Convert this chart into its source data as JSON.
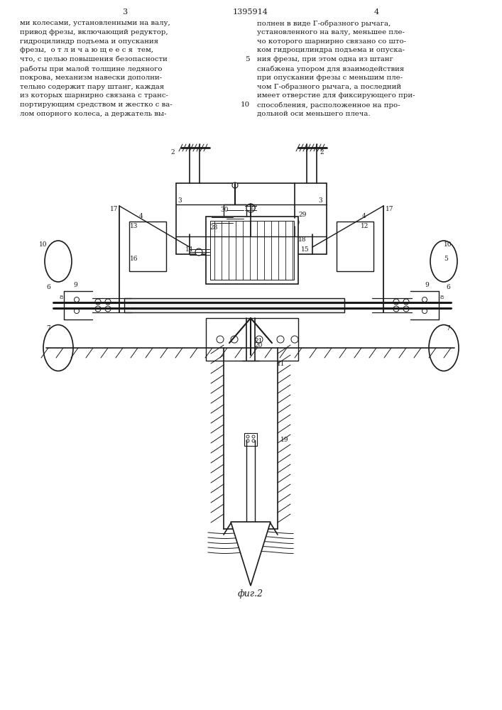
{
  "page_title": "1395914",
  "page_left": "3",
  "page_right": "4",
  "text_left_lines": [
    "ми колесами, установленными на валу,",
    "привод фрезы, включающий редуктор,",
    "гидроцилиндр подъема и опускания",
    "фрезы,  о т л и ч а ю щ е е с я  тем,",
    "что, с целью повышения безопасности",
    "работы при малой толщине ледяного",
    "покрова, механизм навески дополни-",
    "тельно содержит пару штанг, каждая",
    "из которых шарнирно связана с транс-",
    "портирующим средством и жестко с ва-",
    "лом опорного колеса, а держатель вы-"
  ],
  "text_right_lines": [
    "полнен в виде Г-образного рычага,",
    "установленного на валу, меньшее пле-",
    "чо которого шарнирно связано со што-",
    "ком гидроцилиндра подъема и опуска-",
    "ния фрезы, при этом одна из штанг",
    "снабжена упором для взаимодействия",
    "при опускании фрезы с меньшим пле-",
    "чом Г-образного рычага, а последний",
    "имеет отверстие для фиксирующего при-",
    "способления, расположенное на про-",
    "дольной оси меньшего плеча."
  ],
  "line_num_5_row": 4,
  "line_num_10_row": 9,
  "fig_caption": "фиг.2",
  "bg_color": "#ffffff"
}
